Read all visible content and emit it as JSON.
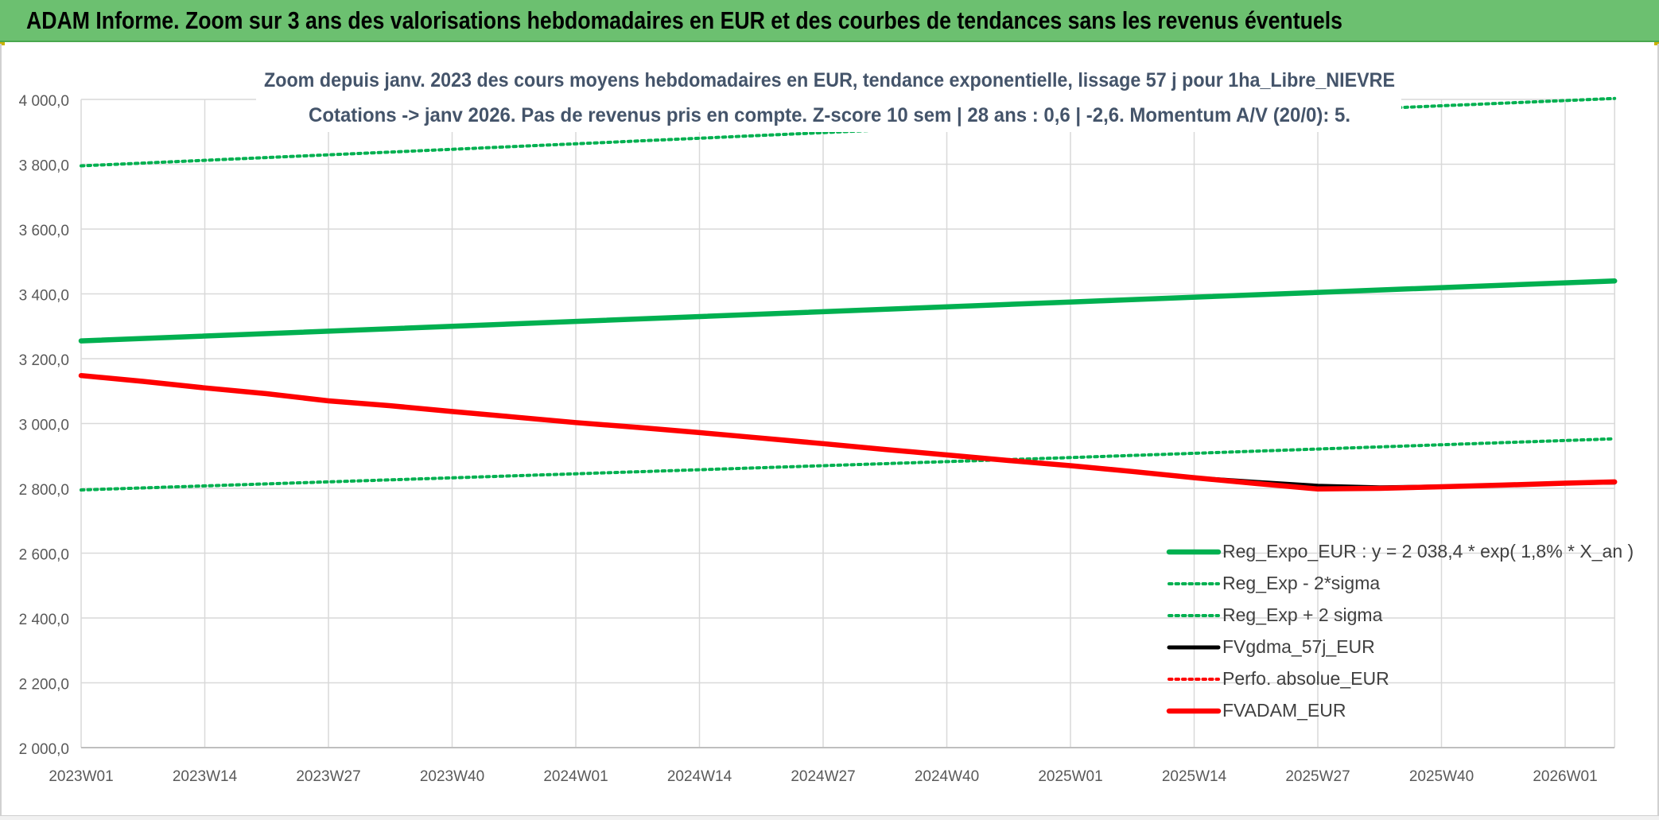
{
  "banner": {
    "title": "ADAM Informe. Zoom sur 3 ans des valorisations hebdomadaires en EUR et des courbes de tendances sans les revenus éventuels"
  },
  "colors": {
    "banner_bg": "#6cc070",
    "green": "#00b050",
    "red": "#ff0000",
    "black": "#000000",
    "grid": "#d9d9d9",
    "title_text": "#44546a"
  },
  "chart_data": {
    "type": "line",
    "title_line1": "Zoom depuis janv. 2023 des cours moyens hebdomadaires en EUR, tendance exponentielle, lissage 57 j pour 1ha_Libre_NIEVRE",
    "title_line2": "Cotations -> janv 2026. Pas de revenus pris en compte. Z-score 10 sem | 28 ans : 0,6 | -2,6. Momentum A/V (20/0): 5.",
    "xlabel": "",
    "ylabel": "",
    "ylim": [
      2000,
      4000
    ],
    "yticks": [
      "4 000,0",
      "3 800,0",
      "3 600,0",
      "3 400,0",
      "3 200,0",
      "3 000,0",
      "2 800,0",
      "2 600,0",
      "2 400,0",
      "2 200,0",
      "2 000,0"
    ],
    "ytick_values": [
      4000,
      3800,
      3600,
      3400,
      3200,
      3000,
      2800,
      2600,
      2400,
      2200,
      2000
    ],
    "xtick_labels": [
      "2023W01",
      "2023W14",
      "2023W27",
      "2023W40",
      "2024W01",
      "2024W14",
      "2024W27",
      "2024W40",
      "2025W01",
      "2025W14",
      "2025W27",
      "2025W40",
      "2026W01"
    ],
    "x_end_index": 12.4,
    "grid": true,
    "legend_position": "bottom-right",
    "series": [
      {
        "name": "Reg_Expo_EUR : y = 2 038,4 * exp( 1,8% *  X_an )",
        "style": "solid-thick",
        "color": "#00b050",
        "points": [
          [
            0,
            3255
          ],
          [
            4,
            3315
          ],
          [
            8,
            3375
          ],
          [
            12.4,
            3440
          ]
        ]
      },
      {
        "name": "Reg_Exp - 2*sigma",
        "style": "dotted",
        "color": "#00b050",
        "points": [
          [
            0,
            2795
          ],
          [
            4,
            2845
          ],
          [
            8,
            2895
          ],
          [
            12.4,
            2953
          ]
        ]
      },
      {
        "name": "Reg_Exp + 2 sigma",
        "style": "dotted",
        "color": "#00b050",
        "points": [
          [
            0,
            3795
          ],
          [
            4,
            3863
          ],
          [
            8,
            3932
          ],
          [
            12.4,
            4003
          ]
        ]
      },
      {
        "name": "FVgdma_57j_EUR",
        "style": "solid",
        "color": "#000000",
        "points": [
          [
            8.3,
            2860
          ],
          [
            9,
            2833
          ],
          [
            9.5,
            2820
          ],
          [
            10,
            2808
          ],
          [
            10.5,
            2803
          ],
          [
            11,
            2806
          ],
          [
            11.5,
            2810
          ],
          [
            12,
            2816
          ],
          [
            12.4,
            2818
          ]
        ]
      },
      {
        "name": "Perfo. absolue_EUR",
        "style": "dotted",
        "color": "#ff0000",
        "points": []
      },
      {
        "name": "FVADAM_EUR",
        "style": "solid-thick",
        "color": "#ff0000",
        "points": [
          [
            0,
            3148
          ],
          [
            0.5,
            3130
          ],
          [
            1,
            3110
          ],
          [
            1.5,
            3092
          ],
          [
            2,
            3070
          ],
          [
            2.5,
            3055
          ],
          [
            3,
            3037
          ],
          [
            3.5,
            3020
          ],
          [
            4,
            3003
          ],
          [
            4.5,
            2988
          ],
          [
            5,
            2972
          ],
          [
            5.5,
            2955
          ],
          [
            6,
            2938
          ],
          [
            6.5,
            2920
          ],
          [
            7,
            2903
          ],
          [
            7.5,
            2886
          ],
          [
            8,
            2870
          ],
          [
            8.5,
            2852
          ],
          [
            9,
            2833
          ],
          [
            9.5,
            2815
          ],
          [
            10,
            2798
          ],
          [
            10.5,
            2800
          ],
          [
            11,
            2805
          ],
          [
            11.5,
            2810
          ],
          [
            12,
            2816
          ],
          [
            12.4,
            2820
          ]
        ]
      }
    ]
  }
}
